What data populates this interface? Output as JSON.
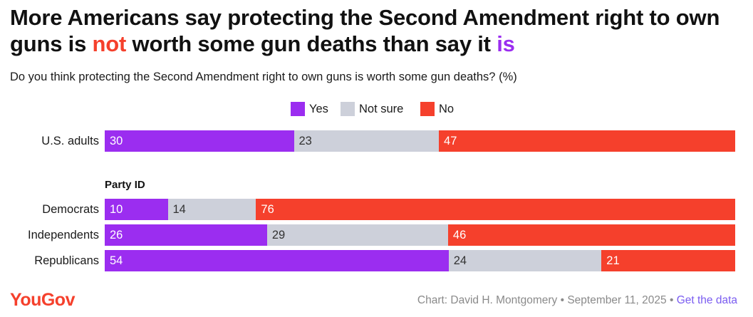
{
  "title": {
    "part1": "More Americans say protecting the Second Amendment right to own guns is ",
    "highlight_no": "not",
    "part2": " worth some gun deaths than say it ",
    "highlight_yes": "is"
  },
  "subtitle": "Do you think protecting the Second Amendment right to own guns is worth some gun deaths? (%)",
  "colors": {
    "yes": "#9b2df0",
    "not_sure": "#cdd0da",
    "no": "#f5402c",
    "logo": "#f5402c",
    "link": "#7a5cf0"
  },
  "chart_data": {
    "type": "bar",
    "orientation": "horizontal",
    "stacked": true,
    "legend_position": "top-center",
    "xlim": [
      0,
      100
    ],
    "series": [
      {
        "name": "Yes",
        "color": "#9b2df0"
      },
      {
        "name": "Not sure",
        "color": "#cdd0da"
      },
      {
        "name": "No",
        "color": "#f5402c"
      }
    ],
    "group_label": "Party ID",
    "rows": [
      {
        "label": "U.S. adults",
        "values": [
          30,
          23,
          47
        ]
      },
      {
        "label": "Democrats",
        "values": [
          10,
          14,
          76
        ]
      },
      {
        "label": "Independents",
        "values": [
          26,
          29,
          46
        ]
      },
      {
        "label": "Republicans",
        "values": [
          54,
          24,
          21
        ]
      }
    ]
  },
  "footer": {
    "logo": "YouGov",
    "credit": "Chart: David H. Montgomery • September 11, 2025 • ",
    "link": "Get the data"
  }
}
